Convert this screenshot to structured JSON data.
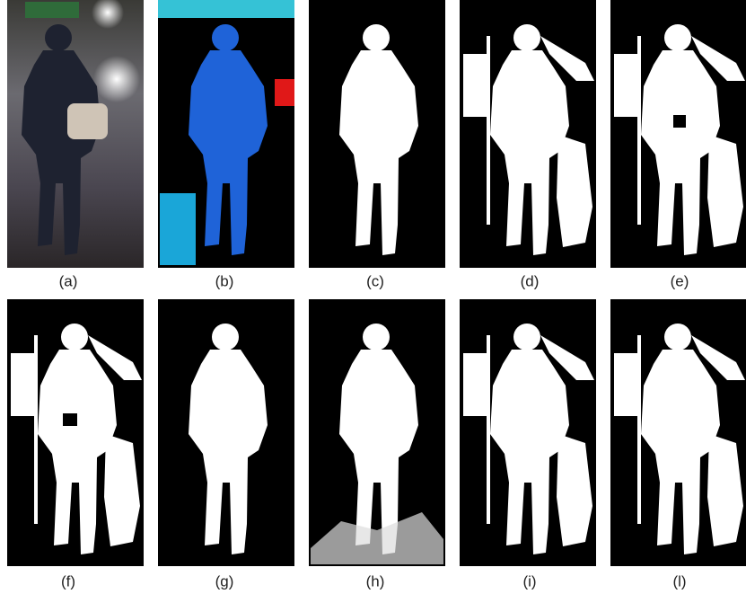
{
  "labels": [
    "(a)",
    "(b)",
    "(c)",
    "(d)",
    "(e)",
    "(f)",
    "(g)",
    "(h)",
    "(i)",
    "(l)"
  ]
}
